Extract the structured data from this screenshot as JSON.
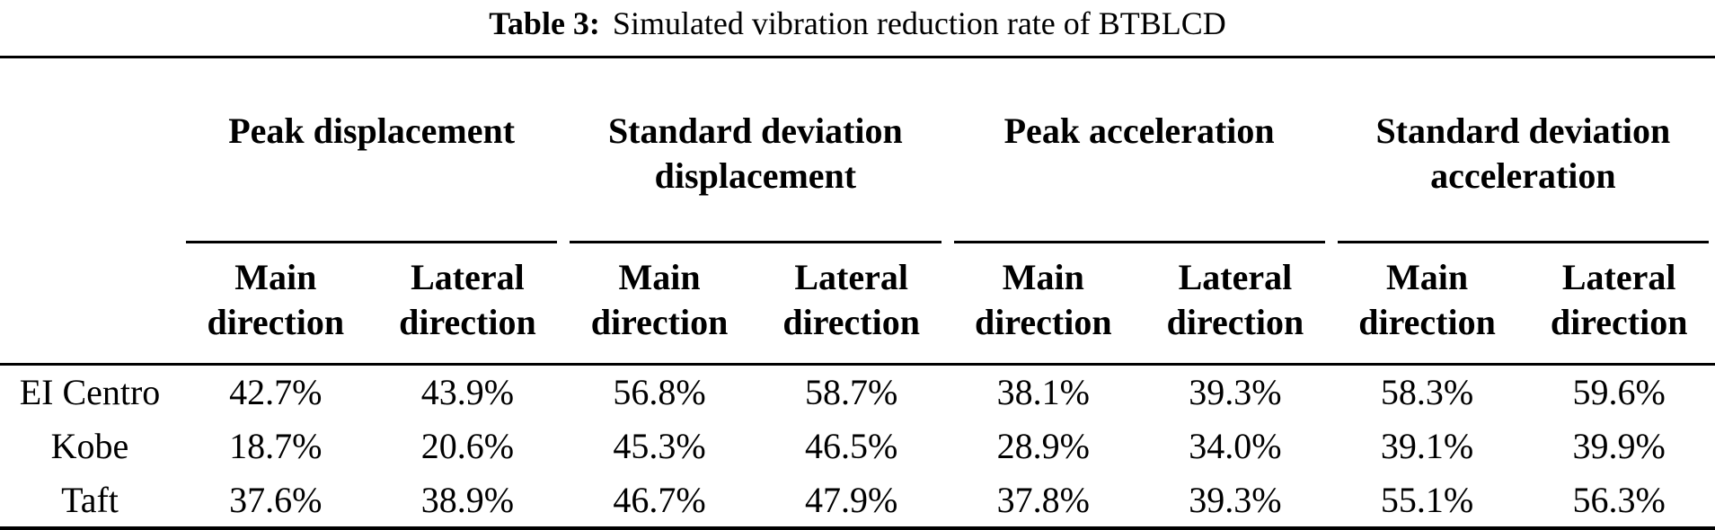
{
  "caption": {
    "label": "Table 3:",
    "text": "Simulated vibration reduction rate of BTBLCD"
  },
  "table": {
    "groups": [
      {
        "label": "Peak displacement"
      },
      {
        "label": "Standard deviation\ndisplacement"
      },
      {
        "label": "Peak acceleration"
      },
      {
        "label": "Standard deviation\nacceleration"
      }
    ],
    "subheaders": [
      "Main\ndirection",
      "Lateral\ndirection",
      "Main\ndirection",
      "Lateral\ndirection",
      "Main\ndirection",
      "Lateral\ndirection",
      "Main\ndirection",
      "Lateral\ndirection"
    ],
    "rows": [
      {
        "label": "EI Centro",
        "values": [
          "42.7%",
          "43.9%",
          "56.8%",
          "58.7%",
          "38.1%",
          "39.3%",
          "58.3%",
          "59.6%"
        ]
      },
      {
        "label": "Kobe",
        "values": [
          "18.7%",
          "20.6%",
          "45.3%",
          "46.5%",
          "28.9%",
          "34.0%",
          "39.1%",
          "39.9%"
        ]
      },
      {
        "label": "Taft",
        "values": [
          "37.6%",
          "38.9%",
          "46.7%",
          "47.9%",
          "37.8%",
          "39.3%",
          "55.1%",
          "56.3%"
        ]
      }
    ]
  },
  "colors": {
    "text": "#000000",
    "background": "#ffffff",
    "rule": "#000000"
  }
}
